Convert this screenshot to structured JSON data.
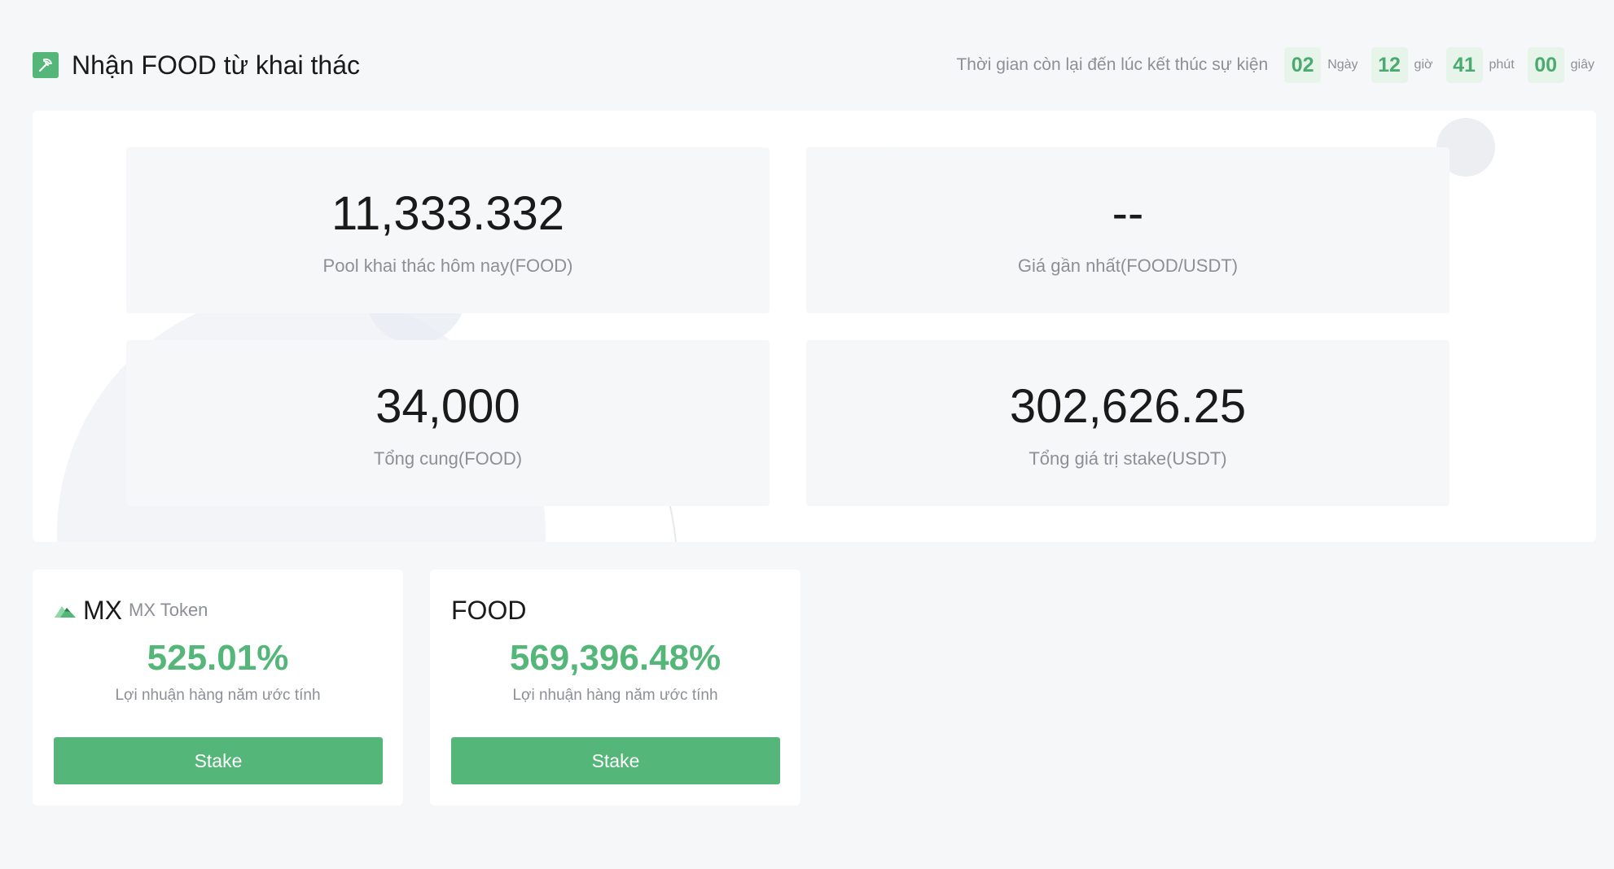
{
  "header": {
    "title": "Nhận FOOD từ khai thác",
    "icon": "pickaxe-icon",
    "countdown": {
      "label": "Thời gian còn lại đến lúc kết thúc sự kiện",
      "days": "02",
      "days_unit": "Ngày",
      "hours": "12",
      "hours_unit": "giờ",
      "minutes": "41",
      "minutes_unit": "phút",
      "seconds": "00",
      "seconds_unit": "giây"
    }
  },
  "stats": [
    {
      "value": "11,333.332",
      "label": "Pool khai thác hôm nay(FOOD)"
    },
    {
      "value": "--",
      "label": "Giá gần nhất(FOOD/USDT)"
    },
    {
      "value": "34,000",
      "label": "Tổng cung(FOOD)"
    },
    {
      "value": "302,626.25",
      "label": "Tổng giá trị stake(USDT)"
    }
  ],
  "pools": [
    {
      "symbol": "MX",
      "name": "MX Token",
      "logo": "mx-logo-icon",
      "apy": "525.01%",
      "apy_label": "Lợi nhuận hàng năm ước tính",
      "button": "Stake"
    },
    {
      "symbol": "FOOD",
      "name": "",
      "apy": "569,396.48%",
      "apy_label": "Lợi nhuận hàng năm ước tính",
      "button": "Stake"
    }
  ],
  "colors": {
    "accent": "#55b679",
    "countdown_bg": "#e6f4ea",
    "muted_text": "#8c8f96"
  }
}
